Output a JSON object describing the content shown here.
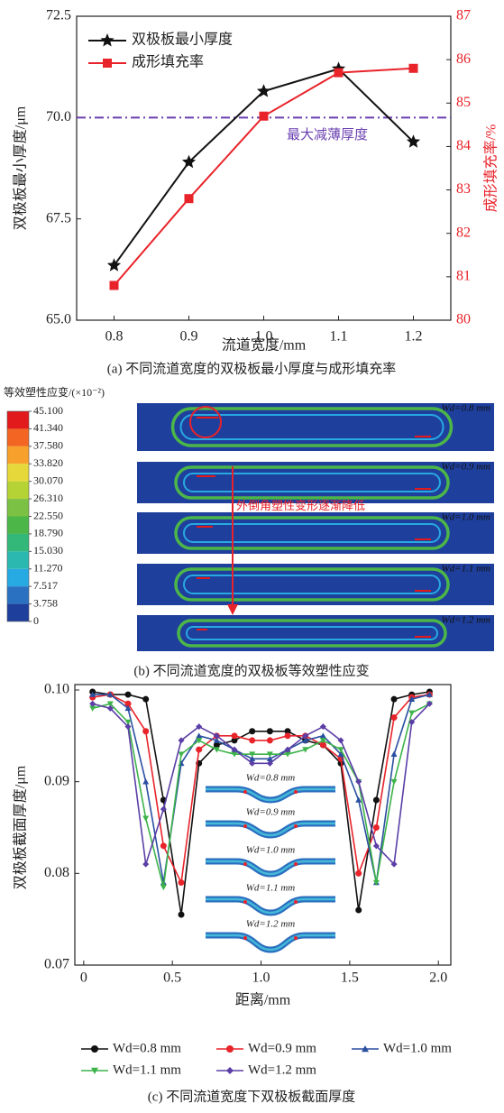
{
  "chart_data": [
    {
      "type": "line",
      "caption": "(a) 不同流道宽度的双极板最小厚度与成形填充率",
      "x_label": "流道宽度/mm",
      "y_label": "双极板最小厚度/μm",
      "y2_label": "成形填充率/%",
      "categories": [
        "0.8",
        "0.9",
        "1.0",
        "1.1",
        "1.2"
      ],
      "series": [
        {
          "name": "双极板最小厚度",
          "color": "#111111",
          "marker": "star",
          "values": [
            66.35,
            68.9,
            70.65,
            71.2,
            69.4
          ]
        },
        {
          "name": "成形填充率",
          "color": "#e8232a",
          "marker": "square",
          "axis": "y2",
          "values": [
            80.8,
            82.8,
            84.7,
            85.7,
            85.8
          ]
        }
      ],
      "ylim": [
        65,
        72.5
      ],
      "yticks": [
        {
          "value": 65,
          "label": "65.0"
        },
        67.5,
        {
          "value": 70,
          "label": "70.0"
        },
        72.5
      ],
      "y2lim": [
        80,
        87
      ],
      "y2ticks": [
        80,
        81,
        82,
        83,
        84,
        85,
        86,
        87
      ],
      "hline": {
        "value": 70,
        "color": "#6a3fb0",
        "label": "最大减薄厚度"
      },
      "legend": "upper left"
    },
    {
      "type": "line",
      "caption": "(c) 不同流道宽度下双极板截面厚度",
      "x_label": "距离/mm",
      "y_label": "双极板截面厚度/μm",
      "x": [
        0.05,
        0.15,
        0.25,
        0.35,
        0.45,
        0.55,
        0.65,
        0.75,
        0.85,
        0.95,
        1.05,
        1.15,
        1.25,
        1.35,
        1.45,
        1.55,
        1.65,
        1.75,
        1.85,
        1.95
      ],
      "series": [
        {
          "name": "Wd=0.8 mm",
          "color": "#111111",
          "marker": "circle",
          "values": [
            0.0998,
            0.0995,
            0.0995,
            0.099,
            0.088,
            0.0755,
            0.092,
            0.094,
            0.0945,
            0.0955,
            0.0955,
            0.0955,
            0.0945,
            0.094,
            0.092,
            0.076,
            0.088,
            0.099,
            0.0995,
            0.0998
          ]
        },
        {
          "name": "Wd=0.9 mm",
          "color": "#e8232a",
          "marker": "circle",
          "values": [
            0.0992,
            0.0995,
            0.0985,
            0.0955,
            0.083,
            0.079,
            0.0935,
            0.095,
            0.095,
            0.0945,
            0.0945,
            0.095,
            0.095,
            0.094,
            0.0925,
            0.08,
            0.085,
            0.097,
            0.0992,
            0.0995
          ]
        },
        {
          "name": "Wd=1.0 mm",
          "color": "#2b4fa0",
          "marker": "triangle-up",
          "values": [
            0.0995,
            0.0995,
            0.098,
            0.09,
            0.079,
            0.092,
            0.095,
            0.0945,
            0.0935,
            0.0925,
            0.0925,
            0.0935,
            0.0945,
            0.095,
            0.093,
            0.088,
            0.079,
            0.093,
            0.099,
            0.0995
          ]
        },
        {
          "name": "Wd=1.1 mm",
          "color": "#3db34a",
          "marker": "triangle-down",
          "values": [
            0.098,
            0.0985,
            0.0965,
            0.086,
            0.0785,
            0.093,
            0.0945,
            0.0935,
            0.093,
            0.093,
            0.093,
            0.093,
            0.0935,
            0.0945,
            0.0935,
            0.09,
            0.079,
            0.09,
            0.0975,
            0.0985
          ]
        },
        {
          "name": "Wd=1.2 mm",
          "color": "#5b3ea6",
          "marker": "diamond",
          "values": [
            0.0985,
            0.098,
            0.096,
            0.081,
            0.087,
            0.0945,
            0.096,
            0.095,
            0.0935,
            0.092,
            0.092,
            0.0935,
            0.095,
            0.096,
            0.0945,
            0.09,
            0.083,
            0.081,
            0.0965,
            0.0985
          ]
        }
      ],
      "xlim": [
        -0.05,
        2.07
      ],
      "xticks": [
        0,
        0.5,
        {
          "value": 1,
          "label": "1.0"
        },
        1.5,
        {
          "value": 2,
          "label": "2.0"
        }
      ],
      "ylim": [
        0.07,
        0.1
      ],
      "yticks": [
        0.07,
        0.08,
        0.09,
        {
          "value": 0.1,
          "label": "0.10"
        }
      ],
      "legend": "lower center",
      "inset_labels": [
        "Wd=0.8 mm",
        "Wd=0.9 mm",
        "Wd=1.0 mm",
        "Wd=1.1 mm",
        "Wd=1.2 mm"
      ]
    }
  ],
  "contour": {
    "title": "等效塑性应变/(×10⁻²)",
    "levels": [
      {
        "value": 45.1,
        "label": "45.100"
      },
      {
        "value": 41.34,
        "label": "41.340"
      },
      {
        "value": 37.58,
        "label": "37.580"
      },
      {
        "value": 33.82,
        "label": "33.820"
      },
      {
        "value": 30.07,
        "label": "30.070"
      },
      {
        "value": 26.31,
        "label": "26.310"
      },
      {
        "value": 22.55,
        "label": "22.550"
      },
      {
        "value": 18.79,
        "label": "18.790"
      },
      {
        "value": 15.03,
        "label": "15.030"
      },
      {
        "value": 11.27,
        "label": "11.270"
      },
      7.517,
      3.758,
      0
    ],
    "colors": [
      "#e31a1c",
      "#f26522",
      "#f7a12c",
      "#e6d83a",
      "#b5d334",
      "#7bc143",
      "#4cb649",
      "#34b87a",
      "#2ab8b0",
      "#27a9e1",
      "#2a72c1",
      "#1f3f9c"
    ],
    "panels": [
      "Wd=0.8 mm",
      "Wd=0.9 mm",
      "Wd=1.0 mm",
      "Wd=1.1 mm",
      "Wd=1.2 mm"
    ],
    "annotation": "外倒角塑性变形逐渐降低",
    "caption": "(b) 不同流道宽度的双极板等效塑性应变"
  }
}
